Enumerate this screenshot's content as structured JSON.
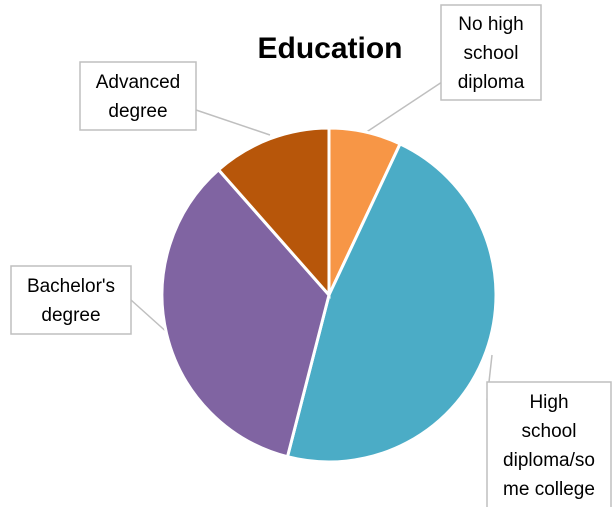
{
  "chart_data": {
    "type": "pie",
    "title": "Education",
    "categories": [
      "No high school diploma",
      "High school diploma/some college",
      "Bachelor's degree",
      "Advanced degree"
    ],
    "values": [
      7,
      47,
      34.5,
      11.5
    ],
    "colors": [
      "#F79646",
      "#4BACC6",
      "#8064A2",
      "#B7560A"
    ],
    "data_labels": [
      [
        "No high",
        "school",
        "diploma"
      ],
      [
        "High",
        "school",
        "diploma/so",
        "me college"
      ],
      [
        "Bachelor's",
        "degree"
      ],
      [
        "Advanced",
        "degree"
      ]
    ],
    "start_angle_deg": 0,
    "direction": "clockwise",
    "legend": "none"
  }
}
